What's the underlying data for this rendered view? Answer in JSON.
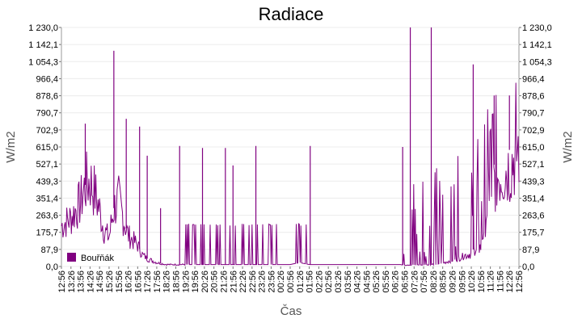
{
  "chart_data": {
    "type": "line",
    "title": "Radiace",
    "xlabel": "Čas",
    "ylabel": "W/m2",
    "ylim": [
      0,
      1230
    ],
    "yticks": [
      "0,0",
      "87,9",
      "175,7",
      "263,6",
      "351,4",
      "439,3",
      "527,1",
      "615,0",
      "702,9",
      "790,7",
      "878,6",
      "966,4",
      "1 054,3",
      "1 142,1",
      "1 230,0"
    ],
    "xticks": [
      "12:56",
      "13:26",
      "13:56",
      "14:26",
      "14:56",
      "15:26",
      "15:56",
      "16:26",
      "16:56",
      "17:26",
      "17:56",
      "18:26",
      "18:56",
      "19:26",
      "19:56",
      "20:26",
      "20:56",
      "21:26",
      "21:56",
      "22:26",
      "22:56",
      "23:26",
      "23:56",
      "00:26",
      "00:56",
      "01:26",
      "01:56",
      "02:26",
      "02:56",
      "03:26",
      "03:56",
      "04:26",
      "04:56",
      "05:26",
      "05:56",
      "06:26",
      "06:56",
      "07:26",
      "07:56",
      "08:26",
      "08:56",
      "09:26",
      "09:56",
      "10:26",
      "10:56",
      "11:26",
      "11:56",
      "12:26",
      "12:56"
    ],
    "grid": true,
    "legend_position": "bottom-left",
    "series": [
      {
        "name": "Bouřňák",
        "color": "#800080",
        "x_hours": [
          0,
          0.5,
          1,
          1.25,
          1.5,
          1.75,
          2,
          2.25,
          2.5,
          2.75,
          3,
          3.5,
          4,
          4.25,
          4.5,
          4.75,
          5,
          5.25,
          5.5,
          5.75,
          6,
          6.5,
          7,
          7.5,
          8,
          8.5,
          9,
          9.5,
          10,
          10.5,
          11,
          11.5,
          12,
          12.5,
          13,
          13.5,
          14,
          14.5,
          15,
          15.5,
          16,
          16.5,
          17,
          17.5,
          18,
          18.5,
          19,
          19.5,
          20,
          20.5,
          21,
          21.5,
          22,
          22.5,
          23,
          23.5,
          24
        ],
        "values": [
          210,
          250,
          330,
          420,
          440,
          380,
          290,
          180,
          150,
          300,
          340,
          160,
          110,
          60,
          40,
          30,
          20,
          15,
          10,
          10,
          10,
          10,
          10,
          10,
          10,
          10,
          10,
          10,
          10,
          10,
          10,
          10,
          10,
          20,
          10,
          10,
          10,
          10,
          10,
          10,
          10,
          10,
          10,
          10,
          10,
          10,
          10,
          15,
          20,
          40,
          60,
          80,
          120,
          500,
          560,
          600,
          720
        ],
        "peaks_x_hours": [
          1.25,
          2.75,
          3.4,
          4.1,
          4.5,
          5.2,
          6.2,
          7.4,
          8.6,
          9.0,
          10.2,
          13.05,
          17.9,
          18.3,
          19.4,
          21.6,
          22.7,
          23.5
        ],
        "peaks_values": [
          735,
          1110,
          760,
          720,
          570,
          300,
          620,
          610,
          610,
          520,
          620,
          620,
          615,
          1230,
          1230,
          1040,
          880,
          880
        ]
      }
    ]
  }
}
